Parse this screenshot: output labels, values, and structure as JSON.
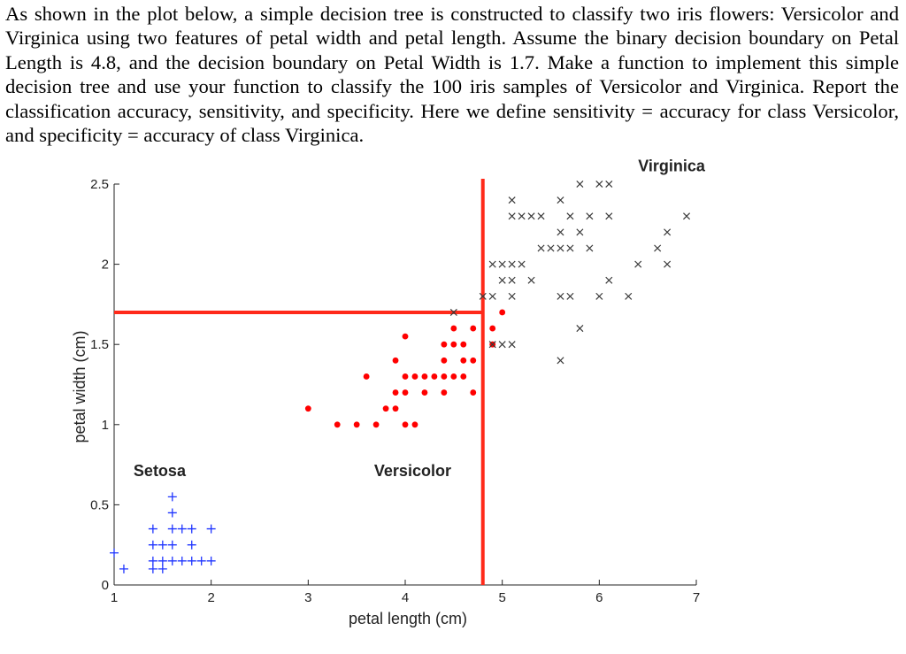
{
  "question": {
    "text": "As shown in the plot below, a simple decision tree is constructed to classify two iris flowers: Versicolor and Virginica using two features of petal width and petal length. Assume the binary decision boundary on Petal Length is 4.8, and the decision boundary on Petal Width is 1.7. Make a function to implement this simple decision tree and use your function to classify the 100 iris samples of Versicolor and Virginica. Report the classification accuracy, sensitivity, and specificity. Here we define sensitivity = accuracy for class Versicolor, and specificity = accuracy of class Virginica."
  },
  "chart_data": {
    "type": "scatter",
    "title": "",
    "xlabel": "petal length (cm)",
    "ylabel": "petal width (cm)",
    "xlim": [
      1,
      7
    ],
    "ylim": [
      0,
      2.5
    ],
    "xticks": [
      1,
      2,
      3,
      4,
      5,
      6,
      7
    ],
    "yticks": [
      0,
      0.5,
      1,
      1.5,
      2,
      2.5
    ],
    "ytick_labels": [
      "0",
      "0.5",
      "1",
      "1.5",
      "2",
      "2.5"
    ],
    "grid": false,
    "boundaries": {
      "petal_length": 4.8,
      "petal_width": 1.7,
      "color": "#ff2a1a"
    },
    "annotations": [
      {
        "text": "Setosa",
        "x": 1.2,
        "y": 0.68
      },
      {
        "text": "Versicolor",
        "x": 3.68,
        "y": 0.68
      },
      {
        "text": "Virginica",
        "x": 6.4,
        "y": 2.58
      }
    ],
    "series": [
      {
        "name": "Setosa",
        "marker": "+",
        "color": "#1f35ff",
        "points": [
          [
            1.6,
            0.55
          ],
          [
            1.6,
            0.45
          ],
          [
            1.4,
            0.35
          ],
          [
            1.6,
            0.35
          ],
          [
            1.7,
            0.35
          ],
          [
            1.8,
            0.35
          ],
          [
            2.0,
            0.35
          ],
          [
            1.4,
            0.25
          ],
          [
            1.5,
            0.25
          ],
          [
            1.6,
            0.25
          ],
          [
            1.8,
            0.25
          ],
          [
            1.0,
            0.2
          ],
          [
            1.4,
            0.15
          ],
          [
            1.5,
            0.15
          ],
          [
            1.6,
            0.15
          ],
          [
            1.7,
            0.15
          ],
          [
            1.8,
            0.15
          ],
          [
            1.9,
            0.15
          ],
          [
            2.0,
            0.15
          ],
          [
            1.1,
            0.1
          ],
          [
            1.4,
            0.1
          ],
          [
            1.5,
            0.1
          ]
        ]
      },
      {
        "name": "Versicolor",
        "marker": "dot",
        "color": "#ff0000",
        "points": [
          [
            5.0,
            1.7
          ],
          [
            4.5,
            1.6
          ],
          [
            4.7,
            1.6
          ],
          [
            4.9,
            1.6
          ],
          [
            4.0,
            1.55
          ],
          [
            4.4,
            1.5
          ],
          [
            4.5,
            1.5
          ],
          [
            4.6,
            1.5
          ],
          [
            4.9,
            1.5
          ],
          [
            3.9,
            1.4
          ],
          [
            4.4,
            1.4
          ],
          [
            4.6,
            1.4
          ],
          [
            4.7,
            1.4
          ],
          [
            3.6,
            1.3
          ],
          [
            4.0,
            1.3
          ],
          [
            4.1,
            1.3
          ],
          [
            4.2,
            1.3
          ],
          [
            4.3,
            1.3
          ],
          [
            4.4,
            1.3
          ],
          [
            4.5,
            1.3
          ],
          [
            4.6,
            1.3
          ],
          [
            3.9,
            1.2
          ],
          [
            4.0,
            1.2
          ],
          [
            4.2,
            1.2
          ],
          [
            4.4,
            1.2
          ],
          [
            4.7,
            1.2
          ],
          [
            3.8,
            1.1
          ],
          [
            3.9,
            1.1
          ],
          [
            3.0,
            1.1
          ],
          [
            3.3,
            1.0
          ],
          [
            3.5,
            1.0
          ],
          [
            3.7,
            1.0
          ],
          [
            4.0,
            1.0
          ],
          [
            4.1,
            1.0
          ]
        ]
      },
      {
        "name": "Virginica",
        "marker": "x",
        "color": "#3a3a3a",
        "points": [
          [
            5.8,
            2.5
          ],
          [
            6.0,
            2.5
          ],
          [
            6.1,
            2.5
          ],
          [
            5.1,
            2.4
          ],
          [
            5.6,
            2.4
          ],
          [
            5.1,
            2.3
          ],
          [
            5.2,
            2.3
          ],
          [
            5.3,
            2.3
          ],
          [
            5.4,
            2.3
          ],
          [
            5.7,
            2.3
          ],
          [
            5.9,
            2.3
          ],
          [
            6.1,
            2.3
          ],
          [
            6.9,
            2.3
          ],
          [
            5.6,
            2.2
          ],
          [
            5.8,
            2.2
          ],
          [
            6.7,
            2.2
          ],
          [
            5.4,
            2.1
          ],
          [
            5.5,
            2.1
          ],
          [
            5.6,
            2.1
          ],
          [
            5.7,
            2.1
          ],
          [
            5.9,
            2.1
          ],
          [
            6.6,
            2.1
          ],
          [
            4.9,
            2.0
          ],
          [
            5.0,
            2.0
          ],
          [
            5.1,
            2.0
          ],
          [
            5.2,
            2.0
          ],
          [
            6.4,
            2.0
          ],
          [
            6.7,
            2.0
          ],
          [
            5.0,
            1.9
          ],
          [
            5.1,
            1.9
          ],
          [
            5.3,
            1.9
          ],
          [
            6.1,
            1.9
          ],
          [
            4.8,
            1.8
          ],
          [
            4.9,
            1.8
          ],
          [
            5.1,
            1.8
          ],
          [
            5.6,
            1.8
          ],
          [
            5.7,
            1.8
          ],
          [
            6.0,
            1.8
          ],
          [
            6.3,
            1.8
          ],
          [
            4.5,
            1.7
          ],
          [
            5.8,
            1.6
          ],
          [
            4.9,
            1.5
          ],
          [
            5.0,
            1.5
          ],
          [
            5.1,
            1.5
          ],
          [
            5.6,
            1.4
          ]
        ]
      }
    ]
  }
}
